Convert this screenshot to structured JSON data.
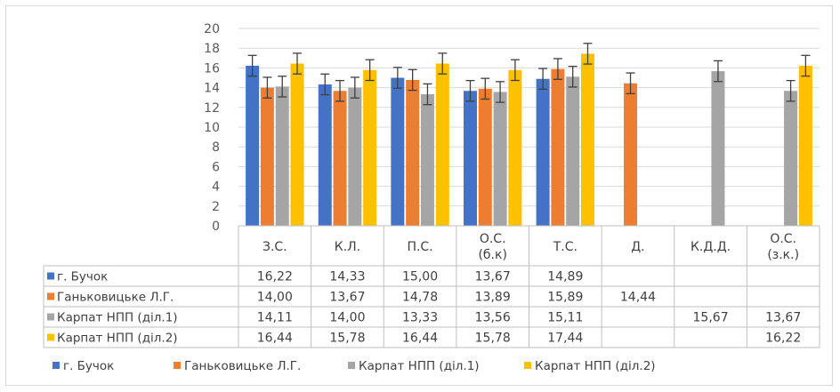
{
  "chart_data": {
    "type": "bar",
    "title": "",
    "xlabel": "",
    "ylabel": "",
    "ylim": [
      0,
      20
    ],
    "yticks": [
      0,
      2,
      4,
      6,
      8,
      10,
      12,
      14,
      16,
      18,
      20
    ],
    "grid": true,
    "error_bars": true,
    "legend_position": "bottom",
    "data_table": true,
    "categories": [
      "З.С.",
      "К.Л.",
      "П.С.",
      "О.С. (б.к)",
      "Т.С.",
      "Д.",
      "К.Д.Д.",
      "О.С. (з.к.)"
    ],
    "category_lines": [
      [
        "З.С."
      ],
      [
        "К.Л."
      ],
      [
        "П.С."
      ],
      [
        "О.С.",
        "(б.к)"
      ],
      [
        "Т.С."
      ],
      [
        "Д."
      ],
      [
        "К.Д.Д."
      ],
      [
        "О.С.",
        "(з.к.)"
      ]
    ],
    "series": [
      {
        "name": "г. Бучок",
        "color": "#4472c4",
        "values": [
          16.22,
          14.33,
          15.0,
          13.67,
          14.89,
          null,
          null,
          null
        ],
        "labels": [
          "16,22",
          "14,33",
          "15,00",
          "13,67",
          "14,89",
          "",
          "",
          ""
        ]
      },
      {
        "name": "Ганьковицьке Л.Г.",
        "color": "#ed7d31",
        "values": [
          14.0,
          13.67,
          14.78,
          13.89,
          15.89,
          14.44,
          null,
          null
        ],
        "labels": [
          "14,00",
          "13,67",
          "14,78",
          "13,89",
          "15,89",
          "14,44",
          "",
          ""
        ]
      },
      {
        "name": "Карпат НПП (діл.1)",
        "color": "#a5a5a5",
        "values": [
          14.11,
          14.0,
          13.33,
          13.56,
          15.11,
          null,
          15.67,
          13.67
        ],
        "labels": [
          "14,11",
          "14,00",
          "13,33",
          "13,56",
          "15,11",
          "",
          "15,67",
          "13,67"
        ]
      },
      {
        "name": "Карпат НПП (діл.2)",
        "color": "#ffc000",
        "values": [
          16.44,
          15.78,
          16.44,
          15.78,
          17.44,
          null,
          null,
          16.22
        ],
        "labels": [
          "16,44",
          "15,78",
          "16,44",
          "15,78",
          "17,44",
          "",
          "",
          "16,22"
        ]
      }
    ]
  }
}
